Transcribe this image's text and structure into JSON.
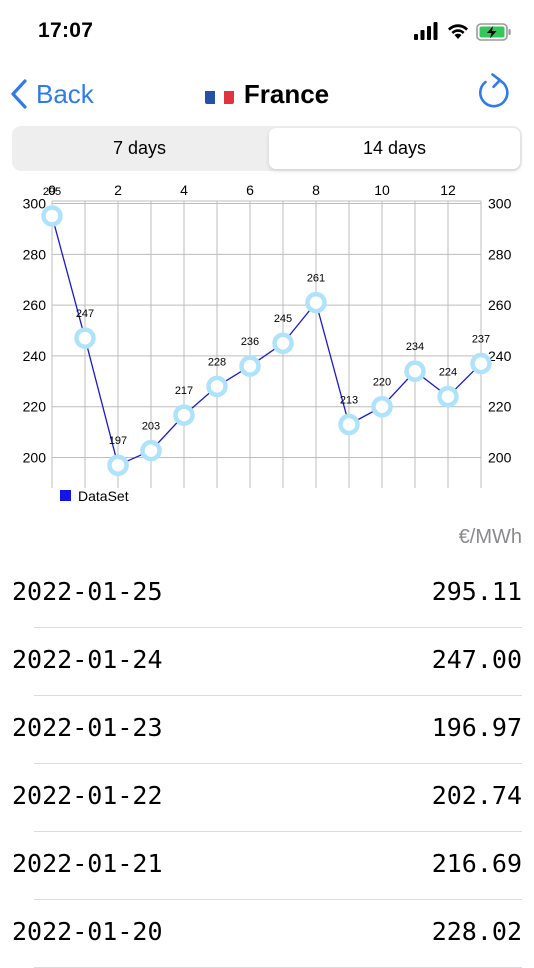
{
  "status": {
    "time": "17:07"
  },
  "nav": {
    "back_label": "Back",
    "title": "France",
    "flag_colors": [
      "#2450a6",
      "#ffffff",
      "#e1323f"
    ]
  },
  "tabs": [
    {
      "label": "7 days",
      "selected": false
    },
    {
      "label": "14 days",
      "selected": true
    }
  ],
  "chart_data": {
    "type": "line",
    "x": [
      0,
      1,
      2,
      3,
      4,
      5,
      6,
      7,
      8,
      9,
      10,
      11,
      12,
      13
    ],
    "series": [
      {
        "name": "DataSet",
        "values": [
          295.11,
          247.0,
          196.97,
          202.74,
          216.69,
          228.02,
          236,
          245,
          261,
          213,
          220,
          234,
          224,
          237
        ]
      }
    ],
    "data_labels": [
      "295",
      "247",
      "197",
      "203",
      "217",
      "228",
      "236",
      "245",
      "261",
      "213",
      "220",
      "234",
      "224",
      "237"
    ],
    "x_ticks": [
      0,
      2,
      4,
      6,
      8,
      10,
      12
    ],
    "y_ticks": [
      200,
      220,
      240,
      260,
      280,
      300
    ],
    "xlim": [
      0,
      13
    ],
    "ylim": [
      188,
      301
    ],
    "grid": true,
    "legend": "bottom-left",
    "line_color": "#1a1acc",
    "marker_color": "#aee3fb",
    "legend_color": "#1414e6"
  },
  "unit": "€/MWh",
  "prices": [
    {
      "date": "2022-01-25",
      "value": "295.11"
    },
    {
      "date": "2022-01-24",
      "value": "247.00"
    },
    {
      "date": "2022-01-23",
      "value": "196.97"
    },
    {
      "date": "2022-01-22",
      "value": "202.74"
    },
    {
      "date": "2022-01-21",
      "value": "216.69"
    },
    {
      "date": "2022-01-20",
      "value": "228.02"
    }
  ]
}
